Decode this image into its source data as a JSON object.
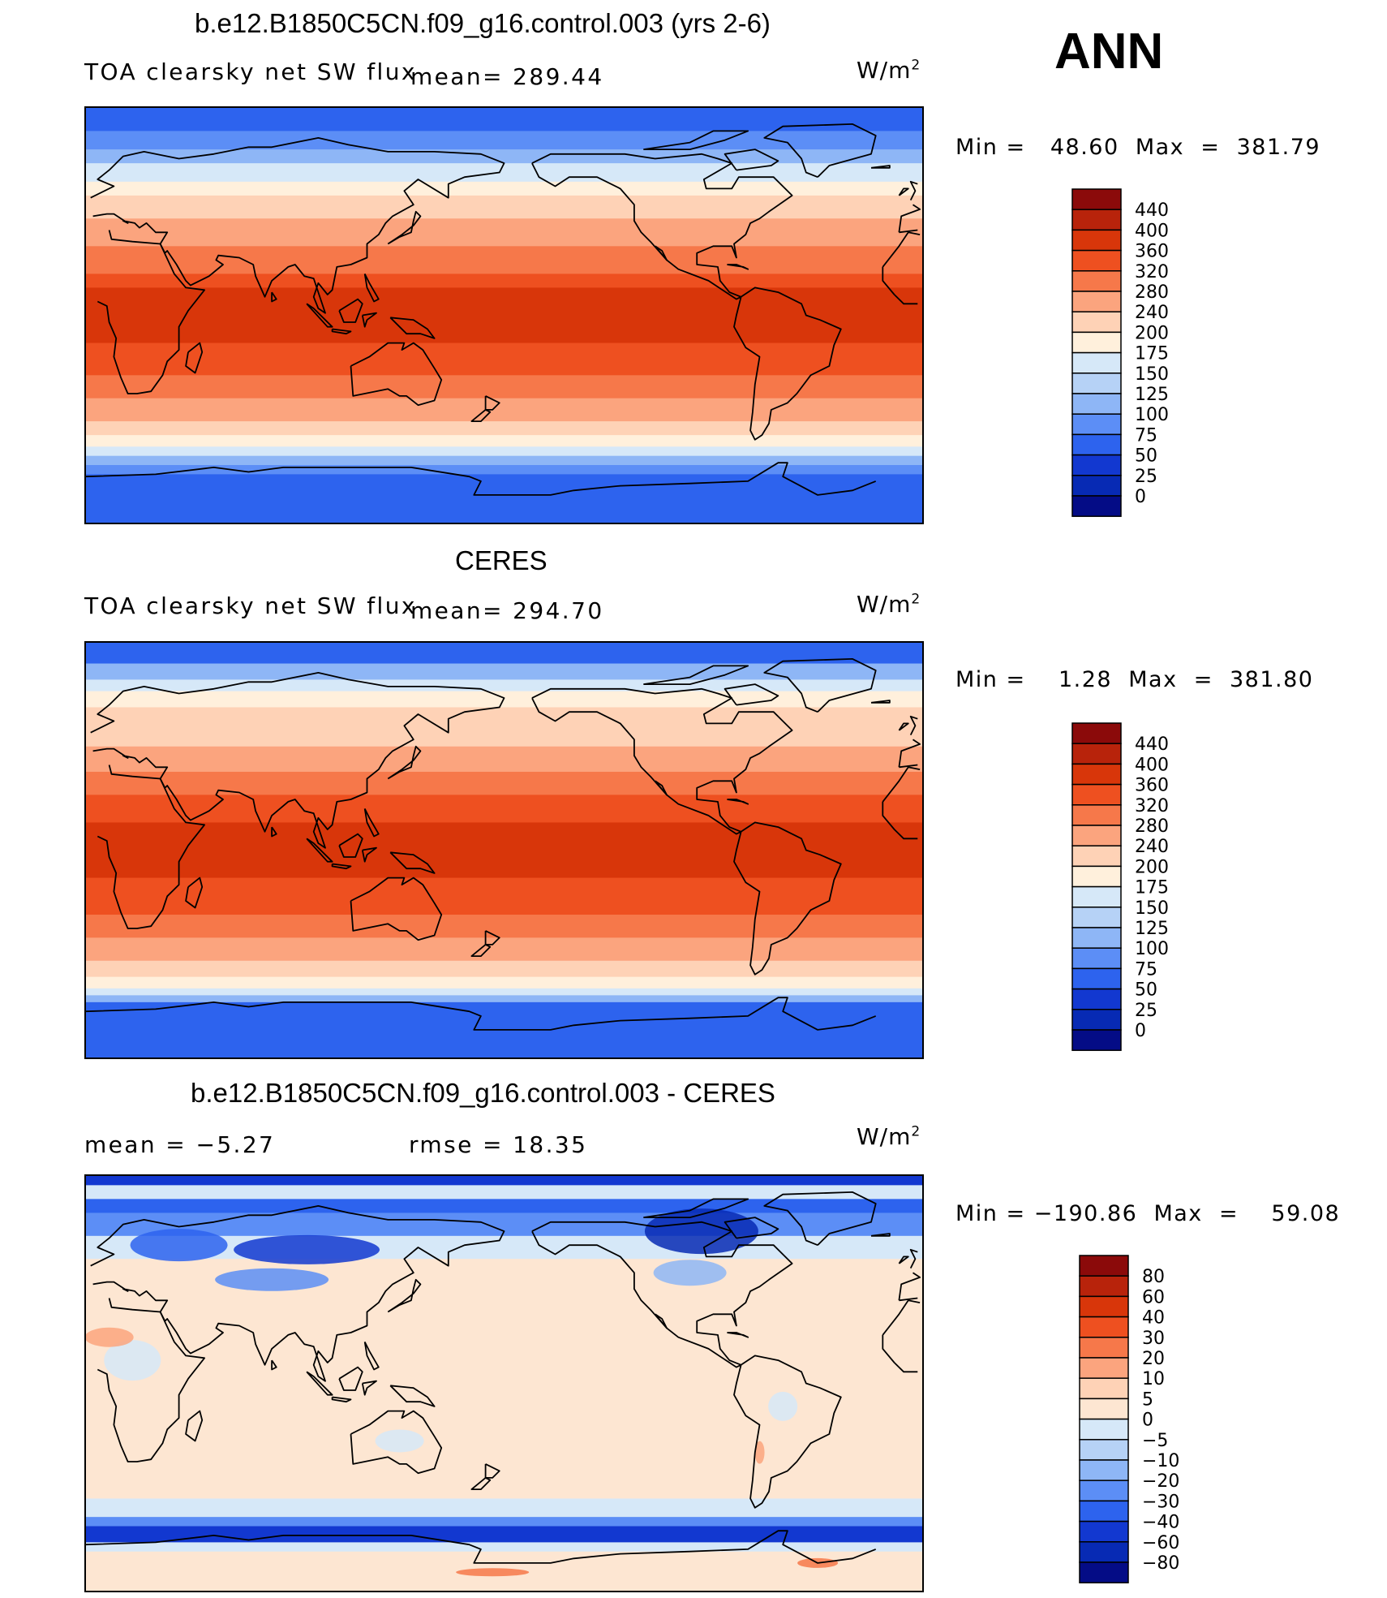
{
  "season": "ANN",
  "panels": [
    {
      "id": "model",
      "title": "b.e12.B1850C5CN.f09_g16.control.003 (yrs 2-6)",
      "left_label": "TOA clearsky net SW flux",
      "center_label": "mean=  289.44",
      "units": "W/m",
      "units_exp": "2",
      "minmax": "Min =   48.60  Max  =  381.79",
      "colorbar": {
        "labels": [
          "440",
          "400",
          "360",
          "320",
          "280",
          "240",
          "200",
          "175",
          "150",
          "125",
          "100",
          "75",
          "50",
          "25",
          "0"
        ],
        "colors": [
          "#8b0a0a",
          "#b8230b",
          "#d8360a",
          "#ee5020",
          "#f6784a",
          "#fba47e",
          "#fed2b6",
          "#fff0dc",
          "#d6e8f8",
          "#b6d2f6",
          "#8eb6f6",
          "#5c8ef6",
          "#2d63ee",
          "#1238d0",
          "#072ab4",
          "#040c86"
        ]
      },
      "bands": [
        {
          "lat": 90,
          "color": "#2d63ee"
        },
        {
          "lat": 80,
          "color": "#5c8ef6"
        },
        {
          "lat": 72,
          "color": "#8eb6f6"
        },
        {
          "lat": 66,
          "color": "#d6e8f8"
        },
        {
          "lat": 58,
          "color": "#fff0dc"
        },
        {
          "lat": 52,
          "color": "#fed2b6"
        },
        {
          "lat": 42,
          "color": "#fba47e"
        },
        {
          "lat": 30,
          "color": "#f6784a"
        },
        {
          "lat": 18,
          "color": "#ee5020"
        },
        {
          "lat": 12,
          "color": "#d8360a"
        },
        {
          "lat": -12,
          "color": "#ee5020"
        },
        {
          "lat": -26,
          "color": "#f6784a"
        },
        {
          "lat": -36,
          "color": "#fba47e"
        },
        {
          "lat": -46,
          "color": "#fed2b6"
        },
        {
          "lat": -52,
          "color": "#fff0dc"
        },
        {
          "lat": -57,
          "color": "#d6e8f8"
        },
        {
          "lat": -61,
          "color": "#8eb6f6"
        },
        {
          "lat": -65,
          "color": "#5c8ef6"
        },
        {
          "lat": -69,
          "color": "#2d63ee"
        }
      ]
    },
    {
      "id": "obs",
      "title": "CERES",
      "left_label": "TOA clearsky net SW flux",
      "center_label": "mean=  294.70",
      "units": "W/m",
      "units_exp": "2",
      "minmax": "Min =    1.28  Max  =  381.80",
      "colorbar": {
        "labels": [
          "440",
          "400",
          "360",
          "320",
          "280",
          "240",
          "200",
          "175",
          "150",
          "125",
          "100",
          "75",
          "50",
          "25",
          "0"
        ],
        "colors": [
          "#8b0a0a",
          "#b8230b",
          "#d8360a",
          "#ee5020",
          "#f6784a",
          "#fba47e",
          "#fed2b6",
          "#fff0dc",
          "#d6e8f8",
          "#b6d2f6",
          "#8eb6f6",
          "#5c8ef6",
          "#2d63ee",
          "#1238d0",
          "#072ab4",
          "#040c86"
        ]
      },
      "bands": [
        {
          "lat": 90,
          "color": "#2d63ee"
        },
        {
          "lat": 81,
          "color": "#8eb6f6"
        },
        {
          "lat": 74,
          "color": "#d6e8f8"
        },
        {
          "lat": 69,
          "color": "#fff0dc"
        },
        {
          "lat": 62,
          "color": "#fed2b6"
        },
        {
          "lat": 45,
          "color": "#fba47e"
        },
        {
          "lat": 34,
          "color": "#f6784a"
        },
        {
          "lat": 24,
          "color": "#ee5020"
        },
        {
          "lat": 12,
          "color": "#d8360a"
        },
        {
          "lat": -12,
          "color": "#ee5020"
        },
        {
          "lat": -28,
          "color": "#f6784a"
        },
        {
          "lat": -38,
          "color": "#fba47e"
        },
        {
          "lat": -48,
          "color": "#fed2b6"
        },
        {
          "lat": -55,
          "color": "#fff0dc"
        },
        {
          "lat": -60,
          "color": "#d6e8f8"
        },
        {
          "lat": -63,
          "color": "#8eb6f6"
        },
        {
          "lat": -66,
          "color": "#2d63ee"
        }
      ]
    },
    {
      "id": "diff",
      "title": "b.e12.B1850C5CN.f09_g16.control.003 - CERES",
      "left_label": "mean =    −5.27",
      "center_label": "rmse =    18.35",
      "units": "W/m",
      "units_exp": "2",
      "minmax": "Min = −190.86  Max  =    59.08",
      "colorbar": {
        "labels": [
          "80",
          "60",
          "40",
          "30",
          "20",
          "10",
          "5",
          "0",
          "−5",
          "−10",
          "−20",
          "−30",
          "−40",
          "−60",
          "−80"
        ],
        "colors": [
          "#8b0a0a",
          "#b8230b",
          "#d8360a",
          "#ee5020",
          "#f6784a",
          "#fba47e",
          "#fed2b6",
          "#fde6d2",
          "#d6e8f8",
          "#b6d2f6",
          "#8eb6f6",
          "#5c8ef6",
          "#2d63ee",
          "#1238d0",
          "#072ab4",
          "#040c86"
        ]
      },
      "bands": [
        {
          "lat": 90,
          "color": "#1238d0"
        },
        {
          "lat": 86,
          "color": "#d6e8f8"
        },
        {
          "lat": 80,
          "color": "#2d63ee"
        },
        {
          "lat": 74,
          "color": "#5c8ef6"
        },
        {
          "lat": 64,
          "color": "#d6e8f8"
        },
        {
          "lat": 54,
          "color": "#fde6d2"
        },
        {
          "lat": -50,
          "color": "#d6e8f8"
        },
        {
          "lat": -58,
          "color": "#5c8ef6"
        },
        {
          "lat": -62,
          "color": "#1238d0"
        },
        {
          "lat": -69,
          "color": "#d6e8f8"
        },
        {
          "lat": -73,
          "color": "#fde6d2"
        }
      ]
    }
  ]
}
